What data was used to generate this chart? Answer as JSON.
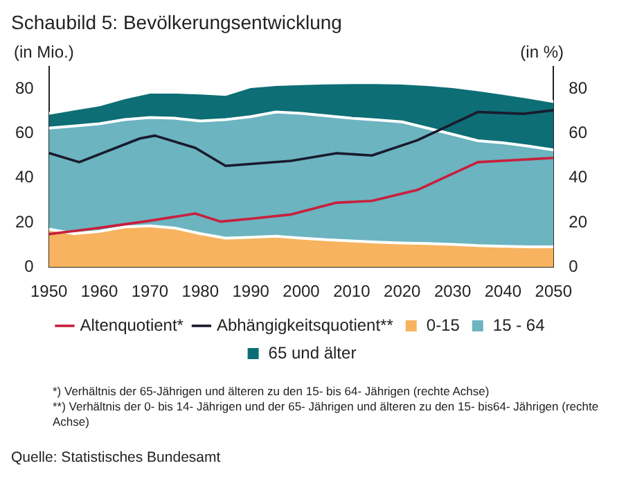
{
  "chart_data": {
    "type": "area",
    "title": "Schaubild 5: Bevölkerungsentwicklung",
    "ylabel": "(in Mio.)",
    "y2label": "(in %)",
    "stacked": true,
    "x": [
      1950,
      1955,
      1960,
      1965,
      1970,
      1975,
      1980,
      1985,
      1990,
      1995,
      2000,
      2005,
      2010,
      2015,
      2020,
      2025,
      2030,
      2035,
      2040,
      2045,
      2050
    ],
    "series": [
      {
        "name": "0-15",
        "color": "#f7b35f",
        "values": [
          17,
          15,
          16,
          18,
          18.5,
          17.5,
          15,
          13,
          13.4,
          13.8,
          13,
          12.3,
          11.7,
          11.2,
          10.8,
          10.6,
          10.2,
          9.6,
          9.3,
          9.1,
          9.1
        ]
      },
      {
        "name": "15 - 64",
        "color": "#6bb4c0",
        "values": [
          45.4,
          48.3,
          48.3,
          48.2,
          48.6,
          49.3,
          50.6,
          53.2,
          54.1,
          55.8,
          56,
          55.6,
          55.1,
          54.8,
          54.4,
          51.8,
          49.4,
          47.1,
          46.5,
          45.2,
          43.5
        ]
      },
      {
        "name": "65 und älter",
        "color": "#0d6e75",
        "values": [
          6.6,
          7.6,
          8.5,
          9.8,
          11.4,
          11.7,
          12.5,
          11.3,
          13.5,
          12.3,
          13.3,
          14.7,
          16,
          16.8,
          17.3,
          19.5,
          21.4,
          22.9,
          22.1,
          21.9,
          21.7
        ]
      },
      {
        "name": "Altenquotient*",
        "type": "line",
        "axis": "y2",
        "color": "#c8203c",
        "x": [
          1950,
          1956,
          1960,
          1970,
          1979,
          1984,
          1990,
          1998,
          2007,
          2014,
          2023,
          2035,
          2050
        ],
        "values": [
          14.8,
          16.5,
          17.6,
          20.8,
          24,
          20.4,
          21.7,
          23.6,
          28.9,
          29.7,
          34.6,
          47.1,
          49
        ]
      },
      {
        "name": "Abhängigkeitsquotient**",
        "type": "line",
        "axis": "y2",
        "color": "#1a1a2e",
        "x": [
          1950,
          1956,
          1968,
          1971,
          1979,
          1985,
          1998,
          2007,
          2014,
          2023,
          2030,
          2035,
          2044,
          2050
        ],
        "values": [
          51.2,
          47.1,
          57.7,
          59,
          53.5,
          45.4,
          47.7,
          51.1,
          50.1,
          56.9,
          64.3,
          69.6,
          68.8,
          70.4
        ]
      }
    ],
    "xlim": [
      1950,
      2050
    ],
    "xticks": [
      1950,
      1960,
      1970,
      1980,
      1990,
      2000,
      2010,
      2020,
      2030,
      2040,
      2050
    ],
    "ylim": [
      0,
      90
    ],
    "yticks": [
      0,
      20,
      40,
      60,
      80
    ],
    "y2lim": [
      0,
      90
    ],
    "y2ticks": [
      0,
      20,
      40,
      60,
      80
    ],
    "grid": false,
    "legend": "bottom",
    "annotations": [
      "*) Verhältnis der 65-Jährigen und älteren zu den 15- bis 64- Jährigen (rechte Achse)",
      "**) Verhältnis der 0- bis 14- Jährigen und der 65- Jährigen und älteren zu den 15- bis64- Jährigen (rechte Achse)",
      "Quelle: Statistisches Bundesamt"
    ]
  }
}
